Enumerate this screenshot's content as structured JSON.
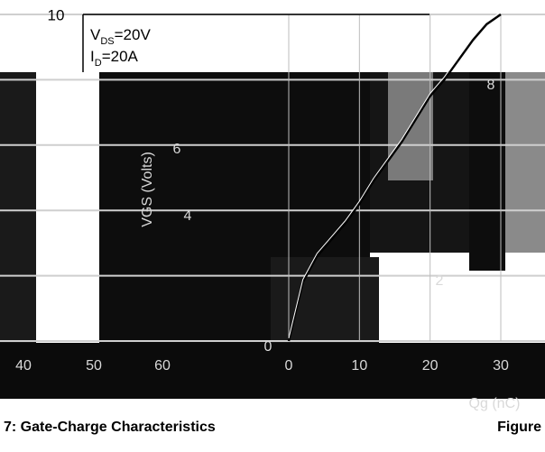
{
  "chart_data": {
    "type": "line",
    "title": "",
    "xlabel": "Qg (nC)",
    "ylabel": "VGS (Volts)",
    "xlim": [
      0,
      30
    ],
    "ylim": [
      0,
      10
    ],
    "x_ticks": [
      "0",
      "10",
      "20",
      "30"
    ],
    "y_ticks": [
      "0",
      "2",
      "4",
      "6",
      "8",
      "10"
    ],
    "extra_x_ticks": [
      "40",
      "50",
      "60"
    ],
    "grid": true,
    "annotation": {
      "line1_main": "V",
      "line1_sub": "DS",
      "line1_rest": "=20V",
      "line2_main": "I",
      "line2_sub": "D",
      "line2_rest": "=20A"
    },
    "series": [
      {
        "x": [
          0,
          2,
          4,
          6,
          8,
          10,
          12,
          14,
          16,
          18,
          20,
          22,
          24,
          26,
          28,
          30
        ],
        "values": [
          0,
          1.8,
          2.6,
          3.1,
          3.6,
          4.2,
          4.9,
          5.5,
          6.1,
          6.8,
          7.5,
          8.0,
          8.6,
          9.2,
          9.7,
          10.0
        ]
      }
    ],
    "caption_left": "7: Gate-Charge Characteristics",
    "caption_right": "Figure"
  }
}
